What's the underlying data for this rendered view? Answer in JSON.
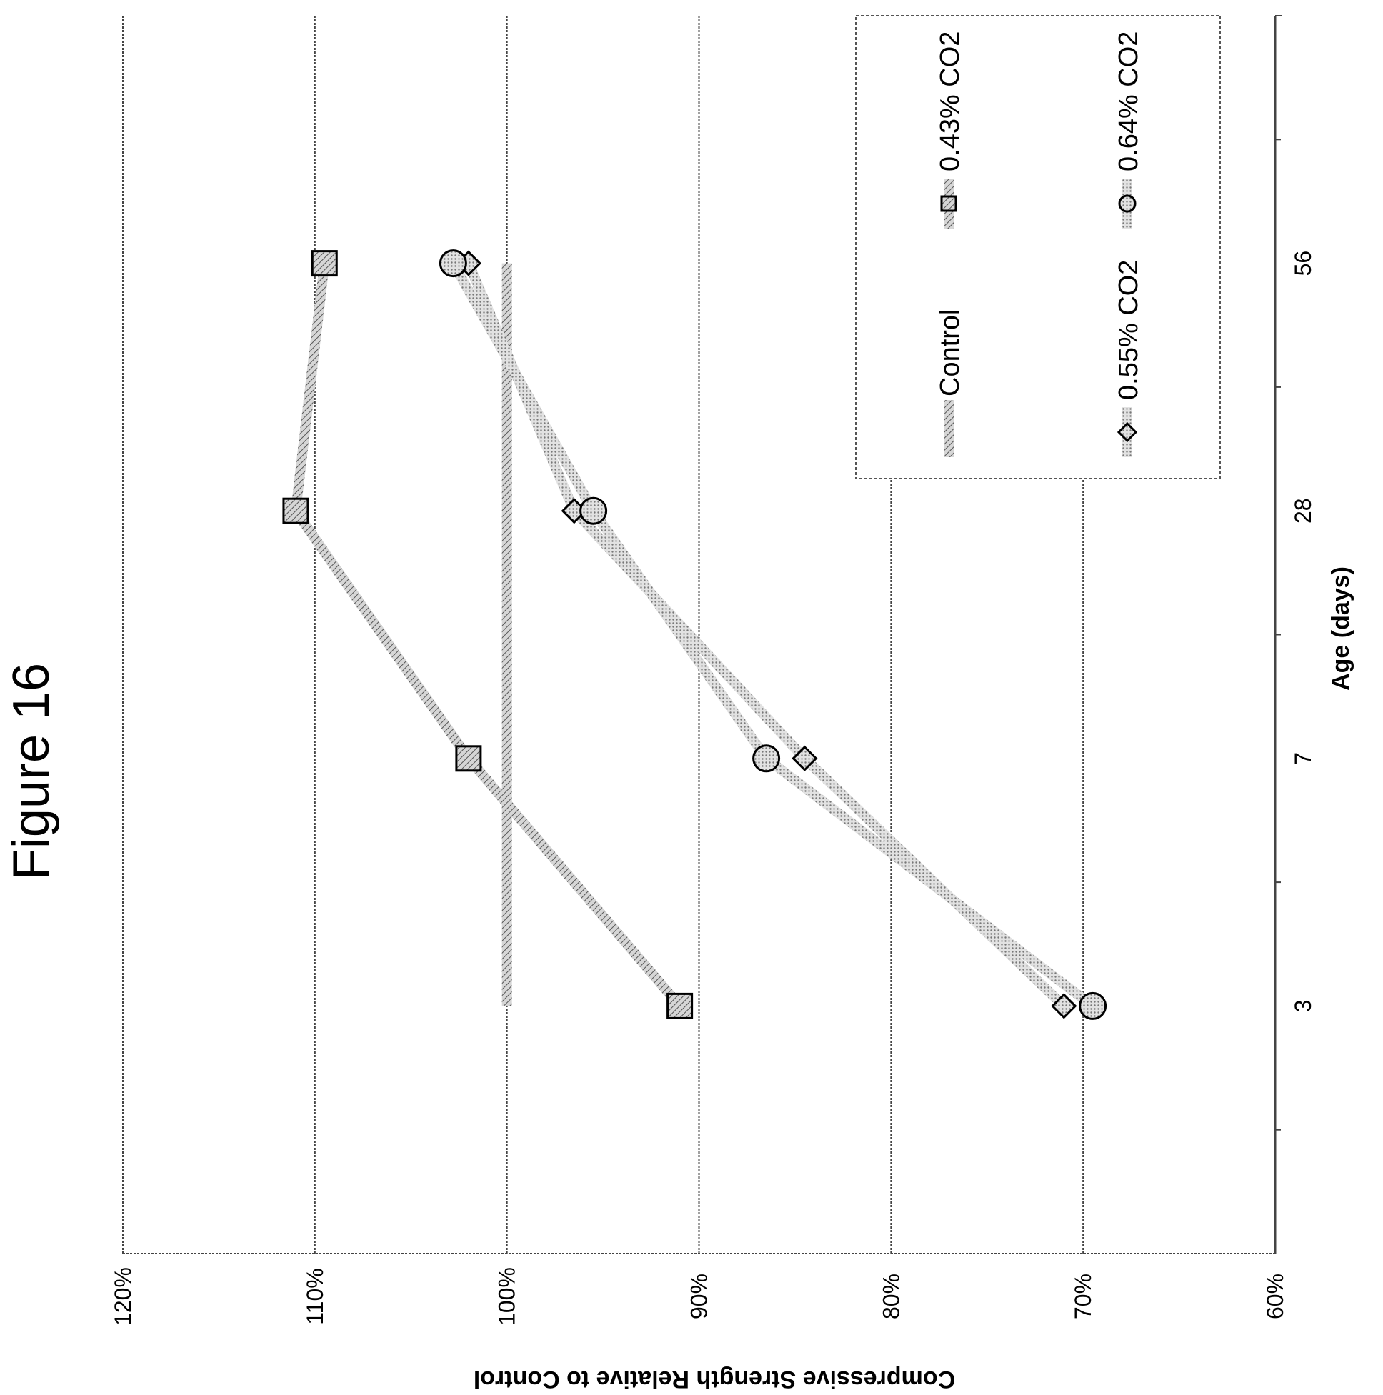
{
  "figure_title": "Figure 16",
  "chart_data": {
    "type": "line",
    "categories": [
      "3",
      "7",
      "28",
      "56"
    ],
    "xlabel": "Age (days)",
    "ylabel": "Compressive Strength Relative to Control",
    "ylim": [
      0.6,
      1.2
    ],
    "yticks": [
      "60%",
      "70%",
      "80%",
      "90%",
      "100%",
      "110%",
      "120%"
    ],
    "grid": true,
    "legend_position": "top-right",
    "orientation": "rotated 90 degrees counter-clockwise",
    "series": [
      {
        "name": "Control",
        "marker": "none",
        "values": [
          1.0,
          1.0,
          1.0,
          1.0
        ]
      },
      {
        "name": "0.43% CO2",
        "marker": "square",
        "values": [
          0.91,
          1.02,
          1.11,
          1.095
        ]
      },
      {
        "name": "0.55% CO2",
        "marker": "diamond",
        "values": [
          0.71,
          0.845,
          0.965,
          1.02
        ]
      },
      {
        "name": "0.64% CO2",
        "marker": "circle",
        "values": [
          0.695,
          0.865,
          0.955,
          1.028
        ]
      }
    ],
    "colors": {
      "line": "#bdbdbd",
      "marker_fill": "#c8c8c8",
      "stroke": "#000000",
      "grid": "#555555"
    }
  }
}
